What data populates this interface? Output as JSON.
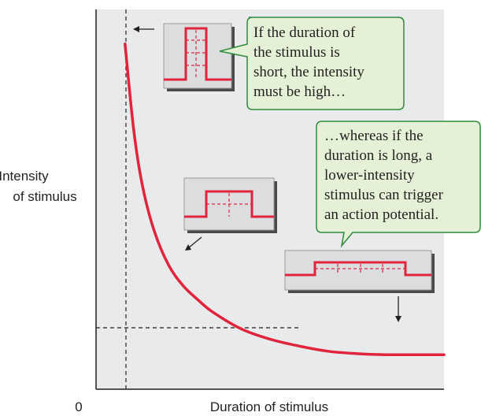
{
  "chart_data": {
    "type": "line",
    "title": "",
    "xlabel": "Duration of stimulus",
    "ylabel": [
      "Intensity",
      "of stimulus"
    ],
    "origin_label": "0",
    "grid": false,
    "legend": "none",
    "curve_color": "#e0243c",
    "callout_bg": "#e4f1d6",
    "callout_border": "#2f8a3c",
    "series": [
      {
        "values_note": "",
        "x": [
          1,
          1.3,
          1.6,
          2,
          2.5,
          3,
          3.5,
          4,
          5,
          6,
          7,
          8,
          9,
          10,
          11,
          12
        ],
        "y": [
          10,
          7.5,
          5.9,
          4.6,
          3.6,
          3.0,
          2.6,
          2.25,
          1.75,
          1.45,
          1.25,
          1.1,
          1.03,
          1.0,
          1.0,
          1.0
        ]
      }
    ],
    "threshold_x": 1,
    "threshold_y": 1.0,
    "xlim": [
      0,
      12
    ],
    "ylim": [
      0,
      11
    ],
    "callouts": [
      {
        "lines": [
          "If the duration of",
          "the stimulus is",
          "short, the intensity",
          "must be high…"
        ]
      },
      {
        "lines": [
          "…whereas if the",
          "duration is long, a",
          "lower-intensity",
          "stimulus can trigger",
          "an action potential."
        ]
      }
    ]
  }
}
